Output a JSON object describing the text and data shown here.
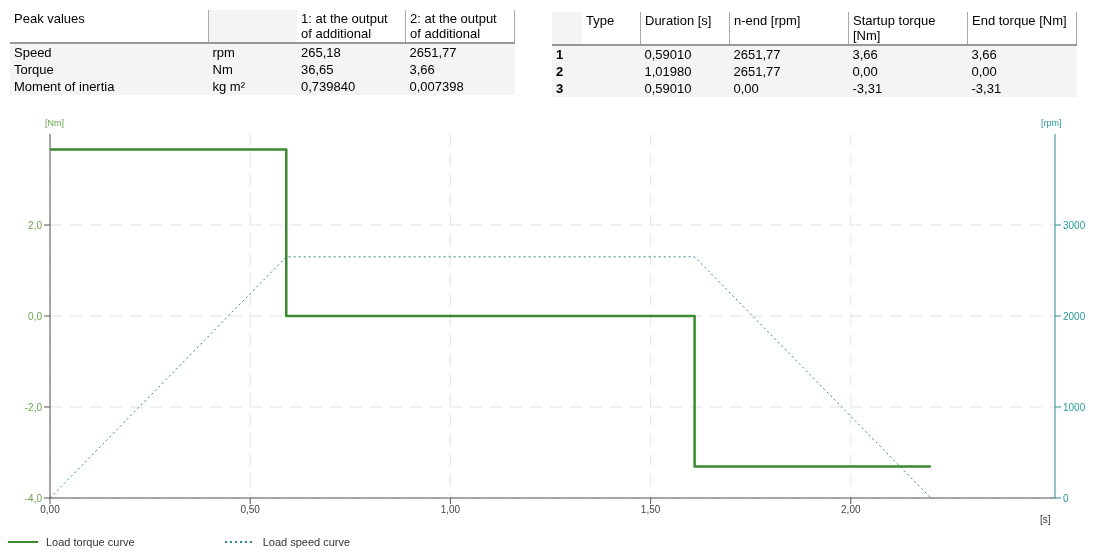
{
  "chart_data": {
    "type": "line",
    "xlabel": "[s]",
    "ylabel": "[Nm]",
    "y2label": "[rpm]",
    "xlim": [
      0,
      2.51
    ],
    "xticks": [
      {
        "value": 0,
        "label": "0,00"
      },
      {
        "value": 0.5,
        "label": "0,50"
      },
      {
        "value": 1,
        "label": "1,00"
      },
      {
        "value": 1.5,
        "label": "1,50"
      },
      {
        "value": 2,
        "label": "2,00"
      }
    ],
    "ylim": [
      -4,
      4
    ],
    "yticks": [
      {
        "value": -4,
        "label": "-4,0"
      },
      {
        "value": -2,
        "label": "-2,0"
      },
      {
        "value": 0,
        "label": "0,0"
      },
      {
        "value": 2,
        "label": "2,0"
      }
    ],
    "y2lim": [
      0,
      4000
    ],
    "y2ticks": [
      0,
      1000,
      2000,
      3000
    ],
    "grid": true,
    "legend": "bottom",
    "series": [
      {
        "name": "Load torque curve",
        "color": "#3a8a2e",
        "line_style": "solid",
        "x": [
          0,
          0.5901,
          0.5901,
          1.6099,
          1.6099,
          2.2
        ],
        "values": [
          3.66,
          3.66,
          0,
          0,
          -3.31,
          -3.31
        ]
      },
      {
        "name": "Load speed curve",
        "color": "#2a8a8a",
        "line_style": "dotted",
        "axis": "y2",
        "x": [
          0,
          0.5901,
          1.6099,
          2.2
        ],
        "values": [
          0,
          2650,
          2650,
          0
        ]
      }
    ],
    "annotations": [
      "Peak values",
      "1: at the output of additional",
      "2: at the output of additional",
      "Speed",
      "rpm",
      "265,18",
      "2651,77",
      "Torque",
      "Nm",
      "36,65",
      "3,66",
      "Moment of inertia",
      "kg m²",
      "0,739840",
      "0,007398",
      "Type",
      "Duration [s]",
      "n-end [rpm]",
      "Startup torque [Nm]",
      "End torque [Nm]",
      "1",
      "0,59010",
      "2651,77",
      "3,66",
      "3,66",
      "2",
      "1,01980",
      "2651,77",
      "0,00",
      "0,00",
      "3",
      "0,59010",
      "0,00",
      "-3,31",
      "-3,31"
    ]
  }
}
